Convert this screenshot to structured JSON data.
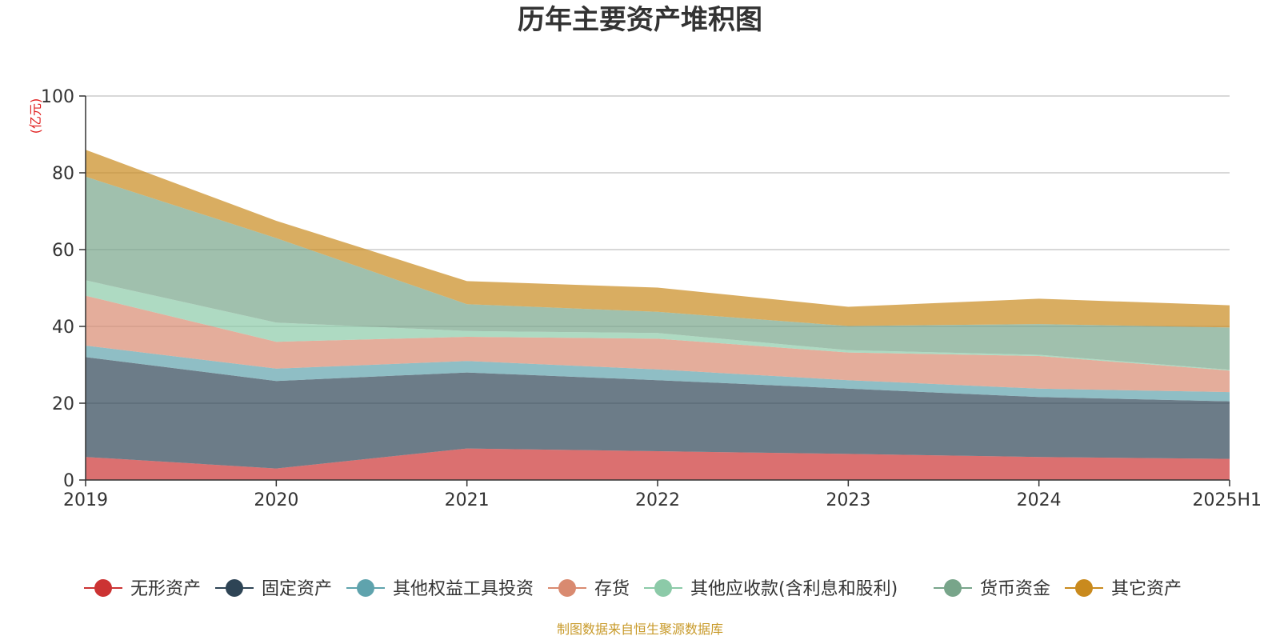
{
  "chart_data": {
    "type": "area",
    "stacked": true,
    "title": "历年主要资产堆积图",
    "unit_label": "(亿元)",
    "categories": [
      "2019",
      "2020",
      "2021",
      "2022",
      "2023",
      "2024",
      "2025H1"
    ],
    "ylim": [
      0,
      100
    ],
    "yticks": [
      "0",
      "20",
      "40",
      "60",
      "80",
      "100"
    ],
    "grid": true,
    "legend_position": "bottom",
    "series": [
      {
        "name": "无形资产",
        "color": "#cc3333",
        "values": [
          6.0,
          3.0,
          8.2,
          7.5,
          6.8,
          6.0,
          5.5
        ]
      },
      {
        "name": "固定资产",
        "color": "#2e4455",
        "values": [
          26.0,
          22.8,
          19.8,
          18.5,
          17.0,
          15.6,
          15.0
        ]
      },
      {
        "name": "其他权益工具投资",
        "color": "#5fa3ad",
        "values": [
          3.0,
          3.2,
          3.0,
          2.8,
          2.2,
          2.2,
          2.4
        ]
      },
      {
        "name": "存货",
        "color": "#d98a70",
        "values": [
          13.0,
          7.0,
          6.3,
          8.0,
          7.2,
          8.5,
          5.6
        ]
      },
      {
        "name": "其他应收款(含利息和股利)",
        "color": "#8ccaa8",
        "values": [
          4.0,
          5.0,
          1.5,
          1.5,
          0.6,
          0.3,
          0.2
        ]
      },
      {
        "name": "货币资金",
        "color": "#78a58a",
        "values": [
          27.0,
          22.0,
          7.0,
          5.5,
          6.3,
          8.0,
          11.0
        ]
      },
      {
        "name": "其它资产",
        "color": "#c98a1e",
        "values": [
          7.0,
          4.5,
          6.0,
          6.3,
          5.0,
          6.6,
          5.8
        ]
      }
    ],
    "source": "制图数据来自恒生聚源数据库"
  }
}
